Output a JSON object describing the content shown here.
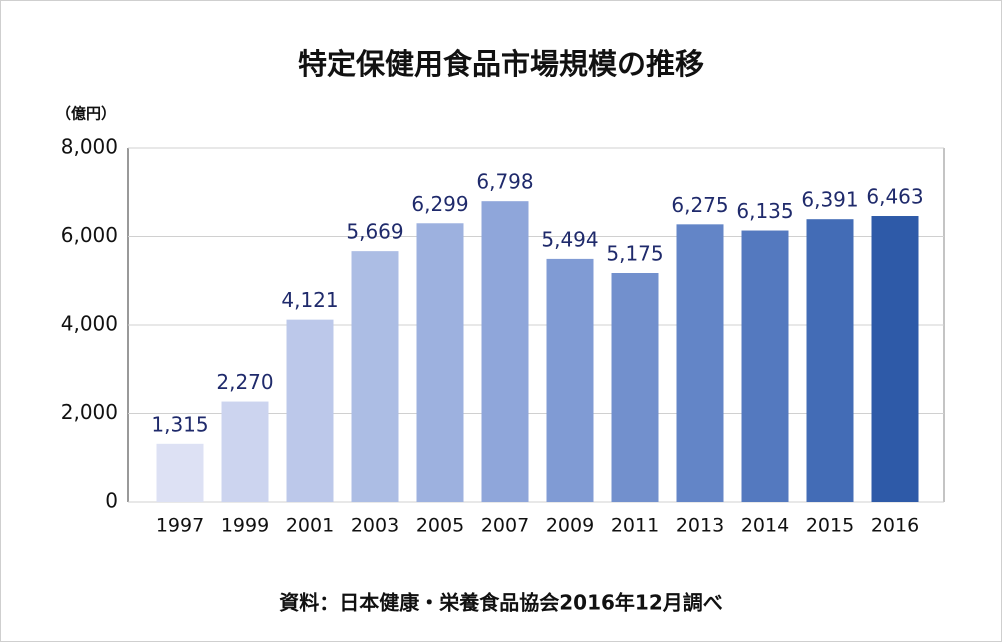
{
  "chart_data": {
    "type": "bar",
    "title": "特定保健用食品市場規模の推移",
    "y_label": "（億円）",
    "source": "資料：日本健康・栄養食品協会2016年12月調べ",
    "categories": [
      "1997",
      "1999",
      "2001",
      "2003",
      "2005",
      "2007",
      "2009",
      "2011",
      "2013",
      "2014",
      "2015",
      "2016"
    ],
    "values": [
      1315,
      2270,
      4121,
      5669,
      6299,
      6798,
      5494,
      5175,
      6275,
      6135,
      6391,
      6463
    ],
    "value_labels": [
      "1,315",
      "2,270",
      "4,121",
      "5,669",
      "6,299",
      "6,798",
      "5,494",
      "5,175",
      "6,275",
      "6,135",
      "6,391",
      "6,463"
    ],
    "colors": [
      "#dde1f4",
      "#ccd4ef",
      "#bcc8ea",
      "#acbde4",
      "#9db1df",
      "#8fa6da",
      "#809bd4",
      "#7290cd",
      "#6385c7",
      "#5479bf",
      "#436cb6",
      "#2e5aa8"
    ],
    "ylim": [
      0,
      8000
    ],
    "yticks": [
      0,
      {
        "value": 2000,
        "label": "2,000"
      },
      {
        "value": 4000,
        "label": "4,000"
      },
      {
        "value": 6000,
        "label": "6,000"
      },
      {
        "value": 8000,
        "label": "8,000"
      }
    ],
    "grid": true
  }
}
